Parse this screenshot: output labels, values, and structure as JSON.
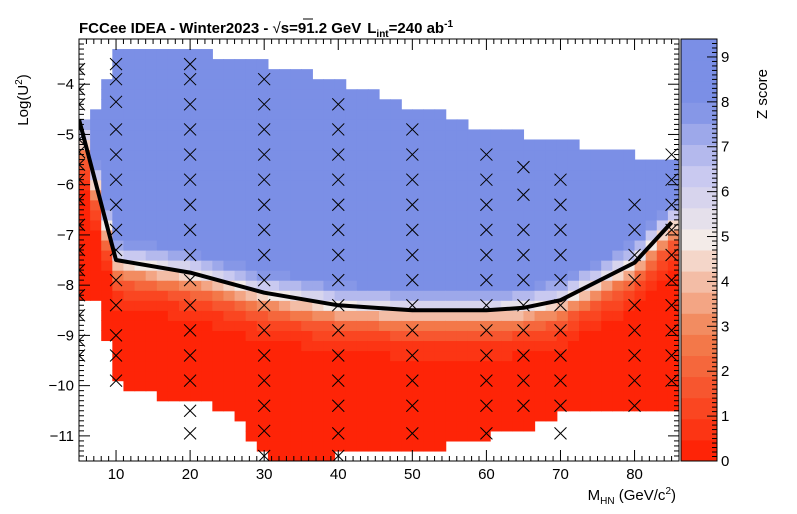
{
  "chart_data": {
    "type": "heatmap",
    "title": {
      "prefix": "FCCee IDEA - Winter2023 - ",
      "sqrt": "√",
      "energy": "s=91.2 GeV",
      "lumi_L": "L",
      "lumi_sub": "int",
      "lumi_eq": "=240 ab",
      "lumi_sup": "-1"
    },
    "xlabel": {
      "main": "M",
      "sub": "HN",
      "unit": " (GeV/c",
      "unit_sup": "2",
      "close": ")"
    },
    "ylabel": {
      "main": "Log(U",
      "sup": "2",
      "close": ")"
    },
    "zlabel": "Z score",
    "xlim": [
      5,
      86
    ],
    "ylim": [
      -11.5,
      -3.1
    ],
    "zlim": [
      0,
      9.4
    ],
    "x_ticks": [
      10,
      20,
      30,
      40,
      50,
      60,
      70,
      80
    ],
    "x_tick_labels": [
      "10",
      "20",
      "30",
      "40",
      "50",
      "60",
      "70",
      "80"
    ],
    "y_ticks": [
      -4,
      -5,
      -6,
      -7,
      -8,
      -9,
      -10,
      -11
    ],
    "y_tick_labels": [
      "−4",
      "−5",
      "−6",
      "−7",
      "−8",
      "−9",
      "−10",
      "−11"
    ],
    "z_ticks": [
      0,
      1,
      2,
      3,
      4,
      5,
      6,
      7,
      8,
      9
    ],
    "z_tick_labels": [
      "0",
      "1",
      "2",
      "3",
      "4",
      "5",
      "6",
      "7",
      "8",
      "9"
    ],
    "colors": {
      "low": "#ff1c00",
      "mid_low": "#f28050",
      "mid": "#f4ece8",
      "mid_high": "#c8c8f0",
      "high": "#7b8fe6"
    },
    "coverage": [
      {
        "x": 5,
        "bottom": -8.4,
        "top": -4.7
      },
      {
        "x": 7.5,
        "bottom": -8.4,
        "top": -4.5
      },
      {
        "x": 10,
        "bottom": -9.9,
        "top": -3.3
      },
      {
        "x": 15,
        "bottom": -10.2,
        "top": -3.3
      },
      {
        "x": 20,
        "bottom": -10.3,
        "top": -3.3
      },
      {
        "x": 25,
        "bottom": -10.5,
        "top": -3.5
      },
      {
        "x": 30,
        "bottom": -11.3,
        "top": -3.6
      },
      {
        "x": 35,
        "bottom": -11.7,
        "top": -3.75
      },
      {
        "x": 40,
        "bottom": -11.3,
        "top": -3.9
      },
      {
        "x": 45,
        "bottom": -11.3,
        "top": -4.2
      },
      {
        "x": 50,
        "bottom": -11.3,
        "top": -4.5
      },
      {
        "x": 55,
        "bottom": -11.2,
        "top": -4.6
      },
      {
        "x": 60,
        "bottom": -11.0,
        "top": -4.95
      },
      {
        "x": 65,
        "bottom": -10.9,
        "top": -5.0
      },
      {
        "x": 70,
        "bottom": -10.6,
        "top": -5.1
      },
      {
        "x": 75,
        "bottom": -10.5,
        "top": -5.3
      },
      {
        "x": 80,
        "bottom": -10.5,
        "top": -5.4
      },
      {
        "x": 85,
        "bottom": -10.5,
        "top": -5.5
      },
      {
        "x": 86,
        "bottom": -10.5,
        "top": -5.5
      }
    ],
    "contour": {
      "x": [
        5,
        10,
        20,
        30,
        40,
        50,
        60,
        65,
        70,
        80,
        85
      ],
      "y": [
        -4.7,
        -7.5,
        -7.75,
        -8.15,
        -8.4,
        -8.5,
        -8.5,
        -8.45,
        -8.3,
        -7.55,
        -6.75
      ]
    },
    "grid_points": [
      {
        "x": 5,
        "y": [
          -3.7,
          -4.1,
          -4.4,
          -5.1,
          -5.35,
          -5.6,
          -5.9,
          -6.3,
          -6.8,
          -7.3,
          -7.7,
          -8.2,
          -8.6,
          -9.1,
          -9.4
        ]
      },
      {
        "x": 10,
        "y": [
          -3.6,
          -3.9,
          -4.35,
          -4.9,
          -5.4,
          -5.9,
          -6.4,
          -6.9,
          -7.3,
          -7.9,
          -8.4,
          -9.0,
          -9.4,
          -9.9
        ]
      },
      {
        "x": 20,
        "y": [
          -3.6,
          -3.9,
          -4.4,
          -4.9,
          -5.4,
          -5.9,
          -6.4,
          -6.9,
          -7.4,
          -7.9,
          -8.4,
          -8.9,
          -9.4,
          -9.9,
          -10.5,
          -10.95
        ]
      },
      {
        "x": 30,
        "y": [
          -3.9,
          -4.4,
          -4.9,
          -5.4,
          -5.9,
          -6.4,
          -6.9,
          -7.4,
          -7.9,
          -8.4,
          -8.9,
          -9.4,
          -9.9,
          -10.4,
          -10.9,
          -11.4
        ]
      },
      {
        "x": 40,
        "y": [
          -4.4,
          -4.9,
          -5.4,
          -5.9,
          -6.4,
          -6.9,
          -7.4,
          -7.9,
          -8.4,
          -8.9,
          -9.4,
          -9.9,
          -10.4,
          -10.95,
          -11.4
        ]
      },
      {
        "x": 50,
        "y": [
          -4.9,
          -5.4,
          -5.9,
          -6.4,
          -6.9,
          -7.4,
          -7.9,
          -8.4,
          -8.9,
          -9.4,
          -9.9,
          -10.4,
          -10.95
        ]
      },
      {
        "x": 60,
        "y": [
          -5.4,
          -5.9,
          -6.4,
          -6.9,
          -7.4,
          -7.9,
          -8.4,
          -8.9,
          -9.4,
          -9.9,
          -10.4,
          -10.95
        ]
      },
      {
        "x": 65,
        "y": [
          -5.65,
          -6.2,
          -6.9,
          -7.4,
          -7.9,
          -8.4,
          -8.9,
          -9.4,
          -9.9,
          -10.4
        ]
      },
      {
        "x": 70,
        "y": [
          -5.9,
          -6.4,
          -6.9,
          -7.4,
          -7.9,
          -8.4,
          -8.9,
          -9.4,
          -9.9,
          -10.4,
          -10.95
        ]
      },
      {
        "x": 80,
        "y": [
          -6.4,
          -6.9,
          -7.4,
          -7.9,
          -8.4,
          -8.9,
          -9.4,
          -9.9,
          -10.4
        ]
      },
      {
        "x": 85,
        "y": [
          -5.4,
          -5.9,
          -6.4,
          -6.9,
          -7.4,
          -7.9,
          -8.4,
          -8.9,
          -9.4,
          -9.9
        ]
      }
    ]
  }
}
